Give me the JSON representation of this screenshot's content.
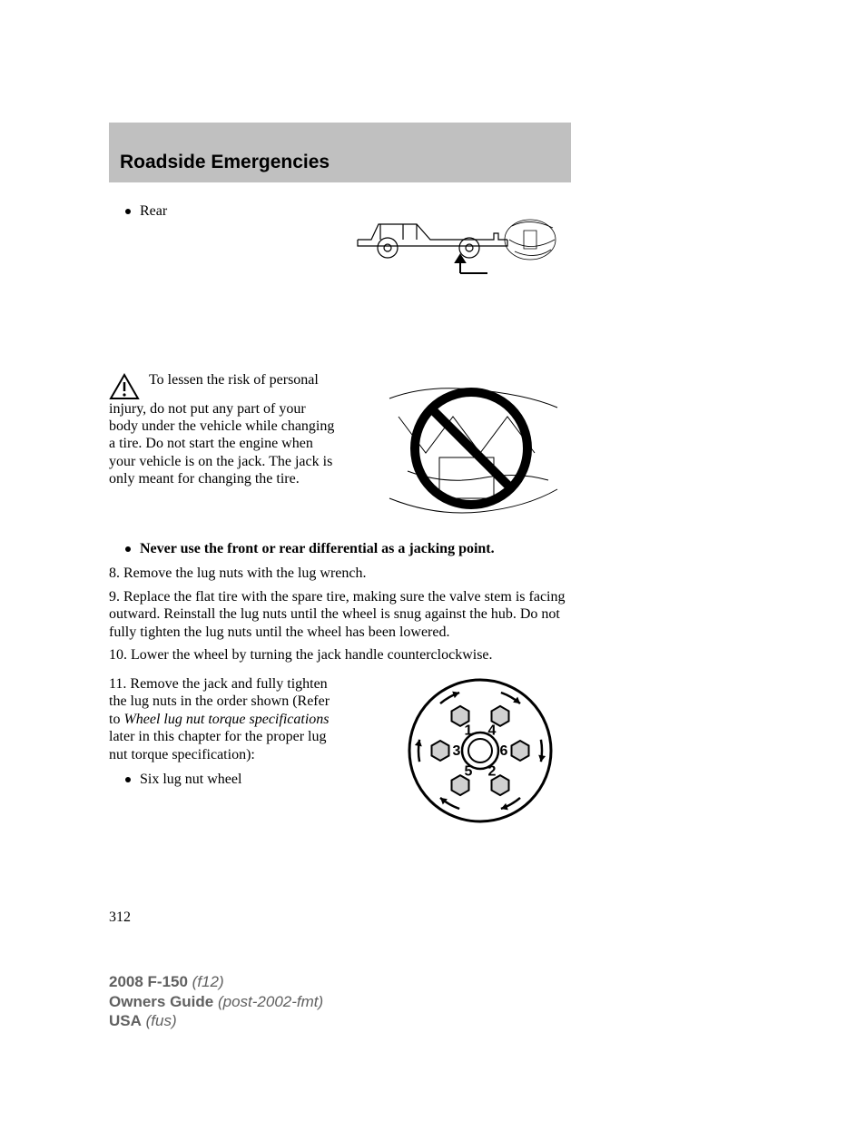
{
  "header": {
    "title": "Roadside Emergencies"
  },
  "bullets": {
    "rear": "Rear",
    "differential": "Never use the front or rear differential as a jacking point.",
    "six_lug": "Six lug nut wheel"
  },
  "warning": {
    "text": "To lessen the risk of personal injury, do not put any part of your body under the vehicle while changing a tire. Do not start the engine when your vehicle is on the jack. The jack is only meant for changing the tire."
  },
  "steps": {
    "s8": "8. Remove the lug nuts with the lug wrench.",
    "s9": "9. Replace the flat tire with the spare tire, making sure the valve stem is facing outward. Reinstall the lug nuts until the wheel is snug against the hub. Do not fully tighten the lug nuts until the wheel has been lowered.",
    "s10": "10. Lower the wheel by turning the jack handle counterclockwise.",
    "s11_pre": "11. Remove the jack and fully tighten the lug nuts in the order shown (Refer to ",
    "s11_italic": "Wheel lug nut torque specifications",
    "s11_post": " later in this chapter for the proper lug nut torque specification):"
  },
  "lug_diagram": {
    "labels": [
      "1",
      "4",
      "3",
      "6",
      "5",
      "2"
    ],
    "outer_radius": 78,
    "lug_radius": 44,
    "hex_size": 11
  },
  "page_number": "312",
  "footer": {
    "line1_bold": "2008 F-150",
    "line1_lite": " (f12)",
    "line2_bold": "Owners Guide",
    "line2_lite": " (post-2002-fmt)",
    "line3_bold": "USA",
    "line3_lite": " (fus)"
  },
  "colors": {
    "header_bg": "#c0c0c0",
    "text": "#000000",
    "footer": "#606060"
  }
}
